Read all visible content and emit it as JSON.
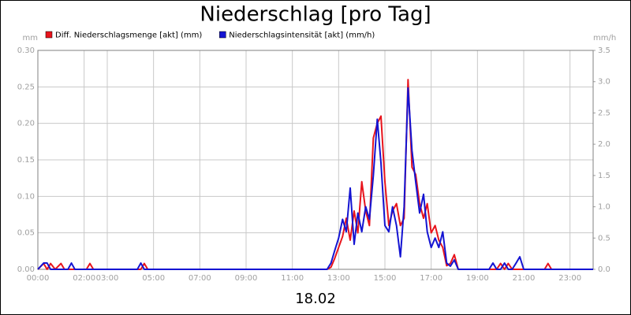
{
  "chart_data": {
    "type": "line",
    "title": "Niederschlag [pro Tag]",
    "x_label": "18.02",
    "y_label": "mm",
    "y2_label": "mm/h",
    "x": [
      0,
      0.25,
      0.4,
      0.55,
      0.75,
      1.0,
      1.15,
      1.3,
      1.45,
      1.6,
      2.1,
      2.25,
      2.4,
      4.3,
      4.45,
      4.6,
      4.75,
      12.5,
      12.67,
      12.83,
      13.0,
      13.17,
      13.33,
      13.5,
      13.67,
      13.83,
      14.0,
      14.17,
      14.33,
      14.5,
      14.67,
      14.83,
      15.0,
      15.17,
      15.33,
      15.5,
      15.67,
      15.83,
      16.0,
      16.17,
      16.33,
      16.5,
      16.67,
      16.83,
      17.0,
      17.17,
      17.33,
      17.5,
      17.67,
      17.83,
      18.0,
      18.17,
      19.5,
      19.67,
      19.83,
      20.0,
      20.17,
      20.33,
      20.5,
      20.67,
      20.83,
      21.0,
      21.17,
      21.33,
      21.9,
      22.05,
      22.2,
      24
    ],
    "series": [
      {
        "name": "Diff. Niederschlagsmenge [akt] (mm)",
        "color": "#e8141c",
        "axis": "y",
        "values": [
          0,
          0.008,
          0,
          0.008,
          0,
          0.008,
          0,
          0,
          0,
          0,
          0,
          0.008,
          0,
          0,
          0,
          0.008,
          0,
          0,
          0.003,
          0.015,
          0.03,
          0.045,
          0.07,
          0.04,
          0.08,
          0.05,
          0.12,
          0.08,
          0.06,
          0.18,
          0.2,
          0.21,
          0.12,
          0.06,
          0.08,
          0.09,
          0.06,
          0.07,
          0.26,
          0.14,
          0.13,
          0.09,
          0.07,
          0.09,
          0.05,
          0.06,
          0.04,
          0.03,
          0.005,
          0.008,
          0.02,
          0,
          0,
          0,
          0,
          0.008,
          0,
          0.008,
          0,
          0,
          0,
          0,
          0,
          0,
          0,
          0.008,
          0,
          0
        ]
      },
      {
        "name": "Niederschlagsintensität [akt] (mm/h)",
        "color": "#1414d2",
        "axis": "y2",
        "values": [
          0,
          0.1,
          0.1,
          0,
          0,
          0,
          0,
          0,
          0.1,
          0,
          0,
          0,
          0,
          0,
          0.1,
          0,
          0,
          0,
          0.1,
          0.3,
          0.5,
          0.8,
          0.6,
          1.3,
          0.4,
          0.9,
          0.6,
          1.0,
          0.8,
          1.5,
          2.4,
          1.7,
          0.7,
          0.6,
          1.0,
          0.7,
          0.2,
          1.0,
          2.9,
          1.9,
          1.4,
          0.9,
          1.2,
          0.6,
          0.35,
          0.5,
          0.35,
          0.6,
          0.1,
          0.05,
          0.15,
          0,
          0,
          0.1,
          0,
          0,
          0.1,
          0,
          0,
          0.1,
          0.2,
          0,
          0,
          0,
          0,
          0,
          0,
          0
        ]
      }
    ],
    "xlim": [
      0,
      24
    ],
    "xticks": [
      {
        "value": 0,
        "label": "00:00"
      },
      {
        "value": 2,
        "label": "02:00"
      },
      {
        "value": 3,
        "label": "03:00"
      },
      {
        "value": 5,
        "label": "05:00"
      },
      {
        "value": 7,
        "label": "07:00"
      },
      {
        "value": 9,
        "label": "09:00"
      },
      {
        "value": 11,
        "label": "11:00"
      },
      {
        "value": 13,
        "label": "13:00"
      },
      {
        "value": 15,
        "label": "15:00"
      },
      {
        "value": 17,
        "label": "17:00"
      },
      {
        "value": 19,
        "label": "19:00"
      },
      {
        "value": 21,
        "label": "21:00"
      },
      {
        "value": 23,
        "label": "23:00"
      }
    ],
    "ylim": [
      0,
      0.3
    ],
    "yticks": [
      {
        "value": 0,
        "label": "0.00"
      },
      {
        "value": 0.05,
        "label": "0.05"
      },
      {
        "value": 0.1,
        "label": "0.10"
      },
      {
        "value": 0.15,
        "label": "0.15"
      },
      {
        "value": 0.2,
        "label": "0.20"
      },
      {
        "value": 0.25,
        "label": "0.25"
      },
      {
        "value": 0.3,
        "label": "0.30"
      }
    ],
    "y2lim": [
      0,
      3.5
    ],
    "y2ticks": [
      {
        "value": 0,
        "label": "0.0"
      },
      {
        "value": 0.5,
        "label": "0.5"
      },
      {
        "value": 1,
        "label": "1.0"
      },
      {
        "value": 1.5,
        "label": "1.5"
      },
      {
        "value": 2,
        "label": "2.0"
      },
      {
        "value": 2.5,
        "label": "2.5"
      },
      {
        "value": 3,
        "label": "3.0"
      },
      {
        "value": 3.5,
        "label": "3.5"
      }
    ],
    "grid": true
  }
}
